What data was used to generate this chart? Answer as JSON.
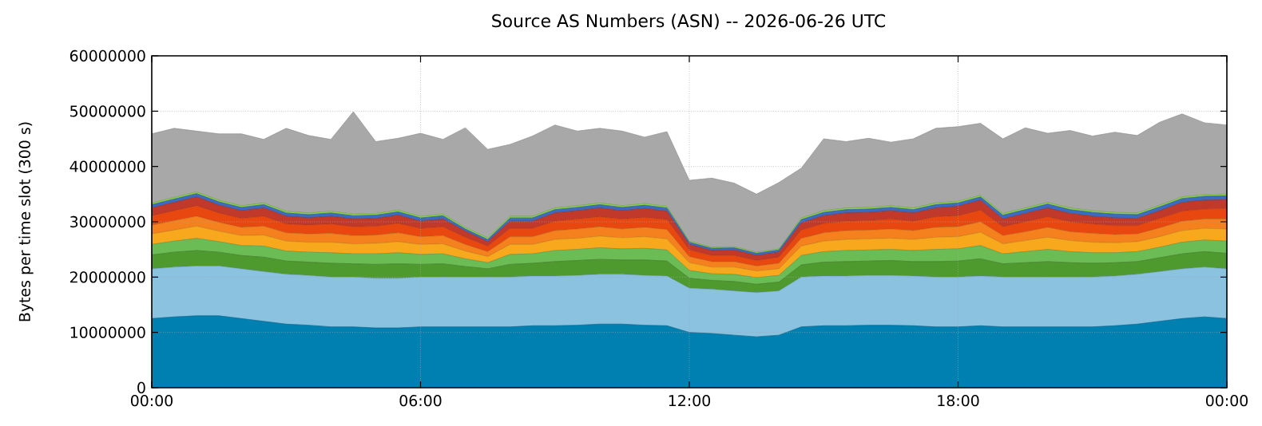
{
  "chart_data": {
    "type": "area",
    "stacked": true,
    "grid": true,
    "title": "Source AS Numbers (ASN) -- 2026-06-26 UTC",
    "ylabel": "Bytes per time slot (300 s)",
    "xlim": [
      0,
      24
    ],
    "ylim": [
      0,
      60000000
    ],
    "xticks": [
      {
        "value": 0,
        "label": "00:00"
      },
      {
        "value": 6,
        "label": "06:00"
      },
      {
        "value": 12,
        "label": "12:00"
      },
      {
        "value": 18,
        "label": "18:00"
      },
      {
        "value": 24,
        "label": "00:00"
      }
    ],
    "yticks": [
      0,
      10000000,
      20000000,
      30000000,
      40000000,
      50000000,
      60000000
    ],
    "x": [
      0,
      0.5,
      1,
      1.5,
      2,
      2.5,
      3,
      3.5,
      4,
      4.5,
      5,
      5.5,
      6,
      6.5,
      7,
      7.5,
      8,
      8.5,
      9,
      9.5,
      10,
      10.5,
      11,
      11.5,
      12,
      12.5,
      13,
      13.5,
      14,
      14.5,
      15,
      15.5,
      16,
      16.5,
      17,
      17.5,
      18,
      18.5,
      19,
      19.5,
      20,
      20.5,
      21,
      21.5,
      22,
      22.5,
      23,
      23.5,
      24
    ],
    "series": [
      {
        "color": "#0080b0",
        "values": [
          12500000.0,
          12800000.0,
          13000000.0,
          13000000.0,
          12500000.0,
          12000000.0,
          11500000.0,
          11300000.0,
          11000000.0,
          11000000.0,
          10800000.0,
          10800000.0,
          11000000.0,
          11000000.0,
          11000000.0,
          11000000.0,
          11000000.0,
          11200000.0,
          11200000.0,
          11300000.0,
          11500000.0,
          11500000.0,
          11300000.0,
          11200000.0,
          10000000.0,
          9800000.0,
          9500000.0,
          9200000.0,
          9500000.0,
          11000000.0,
          11200000.0,
          11200000.0,
          11300000.0,
          11300000.0,
          11200000.0,
          11000000.0,
          11000000.0,
          11200000.0,
          11000000.0,
          11000000.0,
          11000000.0,
          11000000.0,
          11000000.0,
          11200000.0,
          11500000.0,
          12000000.0,
          12500000.0,
          12800000.0,
          12500000.0
        ]
      },
      {
        "color": "#8ac2e0",
        "values": [
          9000000.0,
          9000000.0,
          9000000.0,
          9000000.0,
          9000000.0,
          9000000.0,
          9000000.0,
          9000000.0,
          9000000.0,
          9000000.0,
          9000000.0,
          9000000.0,
          9000000.0,
          9000000.0,
          9000000.0,
          9000000.0,
          9000000.0,
          9000000.0,
          9000000.0,
          9000000.0,
          9000000.0,
          9000000.0,
          9000000.0,
          9000000.0,
          8000000.0,
          8000000.0,
          8000000.0,
          8000000.0,
          8000000.0,
          9000000.0,
          9000000.0,
          9000000.0,
          9000000.0,
          9000000.0,
          9000000.0,
          9000000.0,
          9000000.0,
          9000000.0,
          9000000.0,
          9000000.0,
          9000000.0,
          9000000.0,
          9000000.0,
          9000000.0,
          9000000.0,
          9000000.0,
          9000000.0,
          9000000.0,
          9000000.0
        ]
      },
      {
        "color": "#4e9a2e",
        "values": [
          2500000.0,
          2700000.0,
          2800000.0,
          2500000.0,
          2400000.0,
          2600000.0,
          2400000.0,
          2400000.0,
          2500000.0,
          2400000.0,
          2500000.0,
          2600000.0,
          2300000.0,
          2400000.0,
          1900000.0,
          1500000.0,
          2300000.0,
          2300000.0,
          2600000.0,
          2700000.0,
          2700000.0,
          2600000.0,
          2800000.0,
          2700000.0,
          1800000.0,
          1600000.0,
          1700000.0,
          1500000.0,
          1600000.0,
          2200000.0,
          2500000.0,
          2600000.0,
          2600000.0,
          2700000.0,
          2600000.0,
          2800000.0,
          2900000.0,
          3100000.0,
          2400000.0,
          2600000.0,
          2800000.0,
          2600000.0,
          2500000.0,
          2400000.0,
          2300000.0,
          2500000.0,
          2700000.0,
          2800000.0,
          2800000.0
        ]
      },
      {
        "color": "#6cbc56",
        "values": [
          1900000.0,
          2000000.0,
          2200000.0,
          1900000.0,
          1800000.0,
          2000000.0,
          1800000.0,
          1800000.0,
          1900000.0,
          1800000.0,
          1900000.0,
          2000000.0,
          1800000.0,
          1800000.0,
          1400000.0,
          1100000.0,
          1800000.0,
          1700000.0,
          2000000.0,
          2000000.0,
          2100000.0,
          2000000.0,
          2100000.0,
          2000000.0,
          1400000.0,
          1200000.0,
          1300000.0,
          1200000.0,
          1200000.0,
          1700000.0,
          1900000.0,
          2000000.0,
          2000000.0,
          2000000.0,
          2000000.0,
          2200000.0,
          2200000.0,
          2400000.0,
          1800000.0,
          2000000.0,
          2200000.0,
          2000000.0,
          1900000.0,
          1800000.0,
          1800000.0,
          1900000.0,
          2100000.0,
          2100000.0,
          2200000.0
        ]
      },
      {
        "color": "#f8a81c",
        "values": [
          1900000.0,
          2000000.0,
          2200000.0,
          1900000.0,
          1800000.0,
          2000000.0,
          1800000.0,
          1800000.0,
          1900000.0,
          1800000.0,
          1900000.0,
          2000000.0,
          1800000.0,
          1800000.0,
          1400000.0,
          1100000.0,
          1800000.0,
          1700000.0,
          2000000.0,
          2000000.0,
          2100000.0,
          2000000.0,
          2100000.0,
          2000000.0,
          1400000.0,
          1200000.0,
          1300000.0,
          1200000.0,
          1200000.0,
          1700000.0,
          1900000.0,
          2000000.0,
          2000000.0,
          2000000.0,
          2000000.0,
          2200000.0,
          2200000.0,
          2400000.0,
          1800000.0,
          2000000.0,
          2200000.0,
          2000000.0,
          1900000.0,
          1800000.0,
          1800000.0,
          1900000.0,
          2100000.0,
          2100000.0,
          2200000.0
        ]
      },
      {
        "color": "#f4801e",
        "values": [
          1600000.0,
          1700000.0,
          1800000.0,
          1600000.0,
          1500000.0,
          1600000.0,
          1500000.0,
          1500000.0,
          1600000.0,
          1500000.0,
          1500000.0,
          1600000.0,
          1400000.0,
          1500000.0,
          1200000.0,
          900000.0,
          1400000.0,
          1400000.0,
          1600000.0,
          1700000.0,
          1700000.0,
          1600000.0,
          1700000.0,
          1700000.0,
          1100000.0,
          1000000.0,
          1000000.0,
          900000.0,
          1000000.0,
          1400000.0,
          1500000.0,
          1600000.0,
          1600000.0,
          1700000.0,
          1600000.0,
          1800000.0,
          1800000.0,
          1900000.0,
          1500000.0,
          1600000.0,
          1800000.0,
          1600000.0,
          1600000.0,
          1500000.0,
          1400000.0,
          1600000.0,
          1700000.0,
          1700000.0,
          1800000.0
        ]
      },
      {
        "color": "#e84810",
        "values": [
          1700000.0,
          1800000.0,
          1900000.0,
          1700000.0,
          1600000.0,
          1800000.0,
          1600000.0,
          1600000.0,
          1700000.0,
          1600000.0,
          1600000.0,
          1700000.0,
          1500000.0,
          1600000.0,
          1300000.0,
          1000000.0,
          1500000.0,
          1500000.0,
          1700000.0,
          1800000.0,
          1800000.0,
          1800000.0,
          1800000.0,
          1800000.0,
          1200000.0,
          1100000.0,
          1100000.0,
          1000000.0,
          1100000.0,
          1500000.0,
          1700000.0,
          1700000.0,
          1700000.0,
          1800000.0,
          1700000.0,
          1900000.0,
          2000000.0,
          2100000.0,
          1600000.0,
          1800000.0,
          1900000.0,
          1800000.0,
          1700000.0,
          1600000.0,
          1500000.0,
          1700000.0,
          1800000.0,
          1800000.0,
          1900000.0
        ]
      },
      {
        "color": "#c0392b",
        "values": [
          1400000.0,
          1500000.0,
          1600000.0,
          1400000.0,
          1400000.0,
          1500000.0,
          1400000.0,
          1300000.0,
          1400000.0,
          1400000.0,
          1400000.0,
          1500000.0,
          1300000.0,
          1400000.0,
          1100000.0,
          800000.0,
          1300000.0,
          1300000.0,
          1500000.0,
          1500000.0,
          1600000.0,
          1500000.0,
          1600000.0,
          1500000.0,
          1000000.0,
          900000.0,
          1000000.0,
          900000.0,
          900000.0,
          1300000.0,
          1400000.0,
          1500000.0,
          1500000.0,
          1500000.0,
          1500000.0,
          1600000.0,
          1700000.0,
          1800000.0,
          1400000.0,
          1500000.0,
          1600000.0,
          1500000.0,
          1400000.0,
          1400000.0,
          1300000.0,
          1400000.0,
          1600000.0,
          1600000.0,
          1600000.0
        ]
      },
      {
        "color": "#3c6cc0",
        "values": [
          600000.0,
          600000.0,
          600000.0,
          600000.0,
          600000.0,
          600000.0,
          600000.0,
          600000.0,
          600000.0,
          600000.0,
          600000.0,
          600000.0,
          600000.0,
          600000.0,
          400000.0,
          400000.0,
          600000.0,
          600000.0,
          600000.0,
          600000.0,
          600000.0,
          600000.0,
          600000.0,
          600000.0,
          400000.0,
          400000.0,
          400000.0,
          400000.0,
          400000.0,
          600000.0,
          600000.0,
          600000.0,
          600000.0,
          600000.0,
          600000.0,
          600000.0,
          600000.0,
          600000.0,
          700000.0,
          700000.0,
          700000.0,
          700000.0,
          700000.0,
          700000.0,
          700000.0,
          700000.0,
          700000.0,
          700000.0,
          700000.0
        ]
      },
      {
        "color": "#8cd448",
        "values": [
          300000.0,
          300000.0,
          300000.0,
          300000.0,
          300000.0,
          300000.0,
          300000.0,
          300000.0,
          300000.0,
          300000.0,
          300000.0,
          300000.0,
          300000.0,
          300000.0,
          300000.0,
          300000.0,
          300000.0,
          300000.0,
          300000.0,
          300000.0,
          300000.0,
          300000.0,
          300000.0,
          300000.0,
          200000.0,
          200000.0,
          200000.0,
          200000.0,
          200000.0,
          300000.0,
          300000.0,
          300000.0,
          300000.0,
          300000.0,
          300000.0,
          300000.0,
          300000.0,
          300000.0,
          300000.0,
          300000.0,
          300000.0,
          300000.0,
          300000.0,
          300000.0,
          300000.0,
          300000.0,
          300000.0,
          300000.0,
          300000.0
        ]
      },
      {
        "color": "#a8a8a8",
        "values": [
          12500000.0,
          12500000.0,
          11000000.0,
          12000000.0,
          13000000.0,
          11500000.0,
          15000000.0,
          14000000.0,
          13000000.0,
          18500000.0,
          13000000.0,
          13000000.0,
          15000000.0,
          13500000.0,
          18000000.0,
          16000000.0,
          13000000.0,
          14500000.0,
          15000000.0,
          13500000.0,
          13500000.0,
          13500000.0,
          12000000.0,
          13500000.0,
          11000000.0,
          12500000.0,
          11500000.0,
          10500000.0,
          12000000.0,
          9000000.0,
          13000000.0,
          12000000.0,
          12500000.0,
          11500000.0,
          12500000.0,
          13500000.0,
          13500000.0,
          13000000.0,
          13500000.0,
          14500000.0,
          12500000.0,
          14000000.0,
          13500000.0,
          14500000.0,
          14000000.0,
          15000000.0,
          15000000.0,
          13000000.0,
          12500000.0
        ]
      }
    ]
  }
}
